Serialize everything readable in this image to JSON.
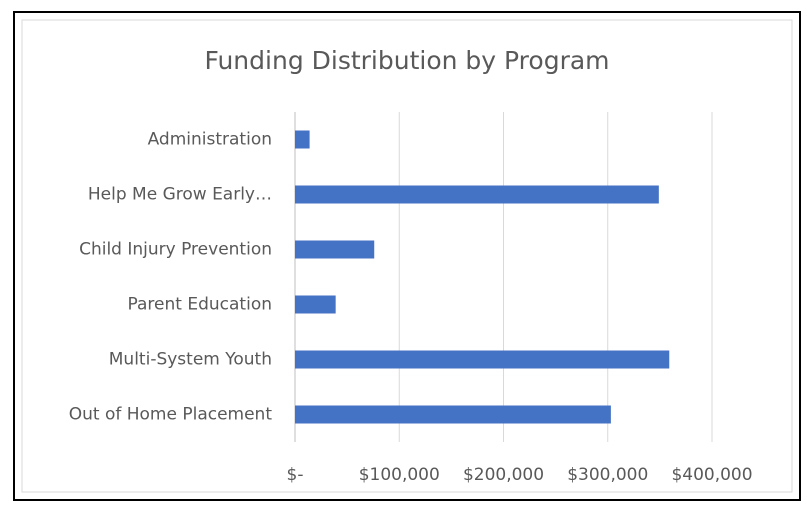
{
  "chart_data": {
    "type": "bar",
    "orientation": "horizontal",
    "title": "Funding Distribution by Program",
    "categories": [
      "Administration",
      "Help Me Grow Early…",
      "Child Injury Prevention",
      "Parent Education",
      "Multi-System Youth",
      "Out of Home Placement"
    ],
    "values": [
      14000,
      349000,
      76000,
      39000,
      359000,
      303000
    ],
    "color": "#4472c4",
    "xlim": [
      0,
      400000
    ],
    "xticks": [
      {
        "value": 0,
        "label": "$-"
      },
      {
        "value": 100000,
        "label": "$100,000"
      },
      {
        "value": 200000,
        "label": "$200,000"
      },
      {
        "value": 300000,
        "label": "$300,000"
      },
      {
        "value": 400000,
        "label": "$400,000"
      }
    ],
    "grid": true
  }
}
